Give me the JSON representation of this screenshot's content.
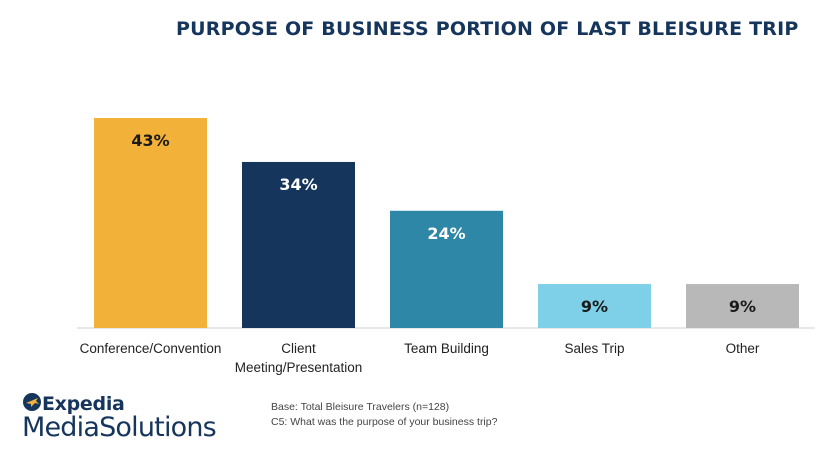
{
  "chart_data": {
    "type": "bar",
    "title": "PURPOSE OF BUSINESS PORTION OF LAST BLEISURE TRIP",
    "categories": [
      [
        "Conference/Convention"
      ],
      [
        "Client",
        "Meeting/Presentation"
      ],
      [
        "Team Building"
      ],
      [
        "Sales Trip"
      ],
      [
        "Other"
      ]
    ],
    "values": [
      43,
      34,
      24,
      9,
      9
    ],
    "value_labels": [
      "43%",
      "34%",
      "24%",
      "9%",
      "9%"
    ],
    "colors": [
      "#f2b138",
      "#16355c",
      "#2f87a8",
      "#7ecfe8",
      "#b8b8b8"
    ],
    "label_colors": [
      "#1a1a1a",
      "#ffffff",
      "#ffffff",
      "#1a1a1a",
      "#1a1a1a"
    ],
    "ylim": [
      0,
      43
    ],
    "grid": false,
    "legend": "none"
  },
  "logo": {
    "top": "Expedia",
    "bottom": "MediaSolutions"
  },
  "footnote": {
    "base": "Base: Total Bleisure Travelers (n=128)",
    "question": "C5: What was the purpose of your business trip?"
  }
}
